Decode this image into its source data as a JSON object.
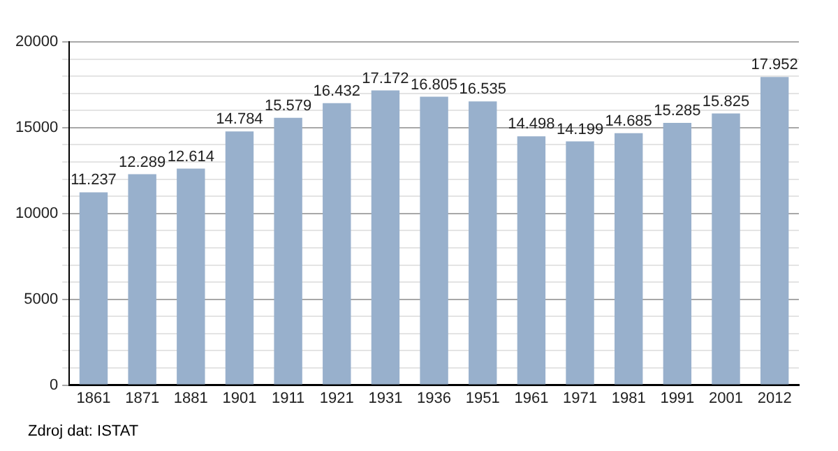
{
  "chart_data": {
    "type": "bar",
    "categories": [
      "1861",
      "1871",
      "1881",
      "1901",
      "1911",
      "1921",
      "1931",
      "1936",
      "1951",
      "1961",
      "1971",
      "1981",
      "1991",
      "2001",
      "2012"
    ],
    "values": [
      11237,
      12289,
      12614,
      14784,
      15579,
      16432,
      17172,
      16805,
      16535,
      14498,
      14199,
      14685,
      15285,
      15825,
      17952
    ],
    "value_labels": [
      "11.237",
      "12.289",
      "12.614",
      "14.784",
      "15.579",
      "16.432",
      "17.172",
      "16.805",
      "16.535",
      "14.498",
      "14.199",
      "14.685",
      "15.285",
      "15.825",
      "17.952"
    ],
    "color": "#98b0cc",
    "ylim": [
      0,
      20000
    ],
    "yticks": [
      0,
      {
        "value": 1000,
        "label": null
      },
      {
        "value": 2000,
        "label": null
      },
      {
        "value": 3000,
        "label": null
      },
      {
        "value": 4000,
        "label": null
      },
      5000,
      {
        "value": 6000,
        "label": null
      },
      {
        "value": 7000,
        "label": null
      },
      {
        "value": 8000,
        "label": null
      },
      {
        "value": 9000,
        "label": null
      },
      10000,
      {
        "value": 11000,
        "label": null
      },
      {
        "value": 12000,
        "label": null
      },
      {
        "value": 13000,
        "label": null
      },
      {
        "value": 14000,
        "label": null
      },
      15000,
      {
        "value": 16000,
        "label": null
      },
      {
        "value": 17000,
        "label": null
      },
      {
        "value": 18000,
        "label": null
      },
      {
        "value": 19000,
        "label": null
      },
      20000
    ],
    "grid": "y",
    "annotations": [
      "Zdroj dat: ISTAT"
    ]
  }
}
